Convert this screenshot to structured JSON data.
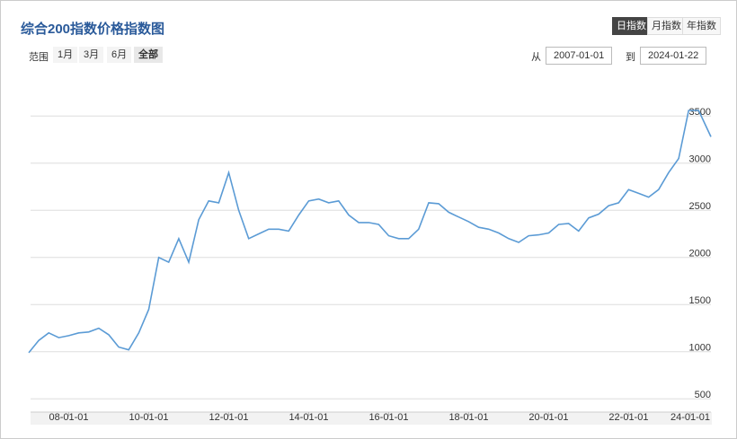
{
  "chart_data": {
    "type": "line",
    "title": "综合200指数价格指数图",
    "x": [
      "07-01-01",
      "07-04-01",
      "07-07-01",
      "07-10-01",
      "08-01-01",
      "08-04-01",
      "08-07-01",
      "08-10-01",
      "09-01-01",
      "09-04-01",
      "09-07-01",
      "09-10-01",
      "10-01-01",
      "10-04-01",
      "10-07-01",
      "10-10-01",
      "11-01-01",
      "11-04-01",
      "11-07-01",
      "11-10-01",
      "12-01-01",
      "12-04-01",
      "12-07-01",
      "12-10-01",
      "13-01-01",
      "13-04-01",
      "13-07-01",
      "13-10-01",
      "14-01-01",
      "14-04-01",
      "14-07-01",
      "14-10-01",
      "15-01-01",
      "15-04-01",
      "15-07-01",
      "15-10-01",
      "16-01-01",
      "16-04-01",
      "16-07-01",
      "16-10-01",
      "17-01-01",
      "17-04-01",
      "17-07-01",
      "17-10-01",
      "18-01-01",
      "18-04-01",
      "18-07-01",
      "18-10-01",
      "19-01-01",
      "19-04-01",
      "19-07-01",
      "19-10-01",
      "20-01-01",
      "20-04-01",
      "20-07-01",
      "20-10-01",
      "21-01-01",
      "21-04-01",
      "21-07-01",
      "21-10-01",
      "22-01-01",
      "22-04-01",
      "22-07-01",
      "22-10-01",
      "23-01-01",
      "23-04-01",
      "23-07-01",
      "23-10-01",
      "24-01-22"
    ],
    "series": [
      {
        "name": "综合200",
        "color": "#5b9bd5",
        "values": [
          990,
          1120,
          1200,
          1150,
          1170,
          1200,
          1210,
          1250,
          1180,
          1050,
          1020,
          1200,
          1450,
          2000,
          1950,
          2200,
          1950,
          2400,
          2600,
          2580,
          2900,
          2500,
          2200,
          2250,
          2300,
          2300,
          2280,
          2450,
          2600,
          2620,
          2580,
          2600,
          2450,
          2370,
          2370,
          2350,
          2230,
          2200,
          2200,
          2300,
          2580,
          2570,
          2480,
          2430,
          2380,
          2320,
          2300,
          2260,
          2200,
          2160,
          2230,
          2240,
          2260,
          2350,
          2360,
          2280,
          2420,
          2460,
          2550,
          2580,
          2720,
          2680,
          2640,
          2720,
          2900,
          3050,
          3560,
          3560,
          3280
        ]
      }
    ],
    "xlim": [
      "07-01-01",
      "24-01-22"
    ],
    "xticks": [
      "08-01-01",
      "10-01-01",
      "12-01-01",
      "14-01-01",
      "16-01-01",
      "18-01-01",
      "20-01-01",
      "22-01-01",
      "24-01-01"
    ],
    "ylim": [
      360,
      3960
    ],
    "yticks": [
      500,
      1000,
      1500,
      2000,
      2500,
      3000,
      3500
    ],
    "grid": true
  },
  "controls": {
    "periods": [
      "日指数",
      "月指数",
      "年指数"
    ],
    "active_period": 0,
    "range_label": "范围",
    "ranges": [
      "1月",
      "3月",
      "6月",
      "全部"
    ],
    "active_range": 3,
    "from_label": "从",
    "from": "2007-01-01",
    "to_label": "到",
    "to": "2024-01-22"
  }
}
